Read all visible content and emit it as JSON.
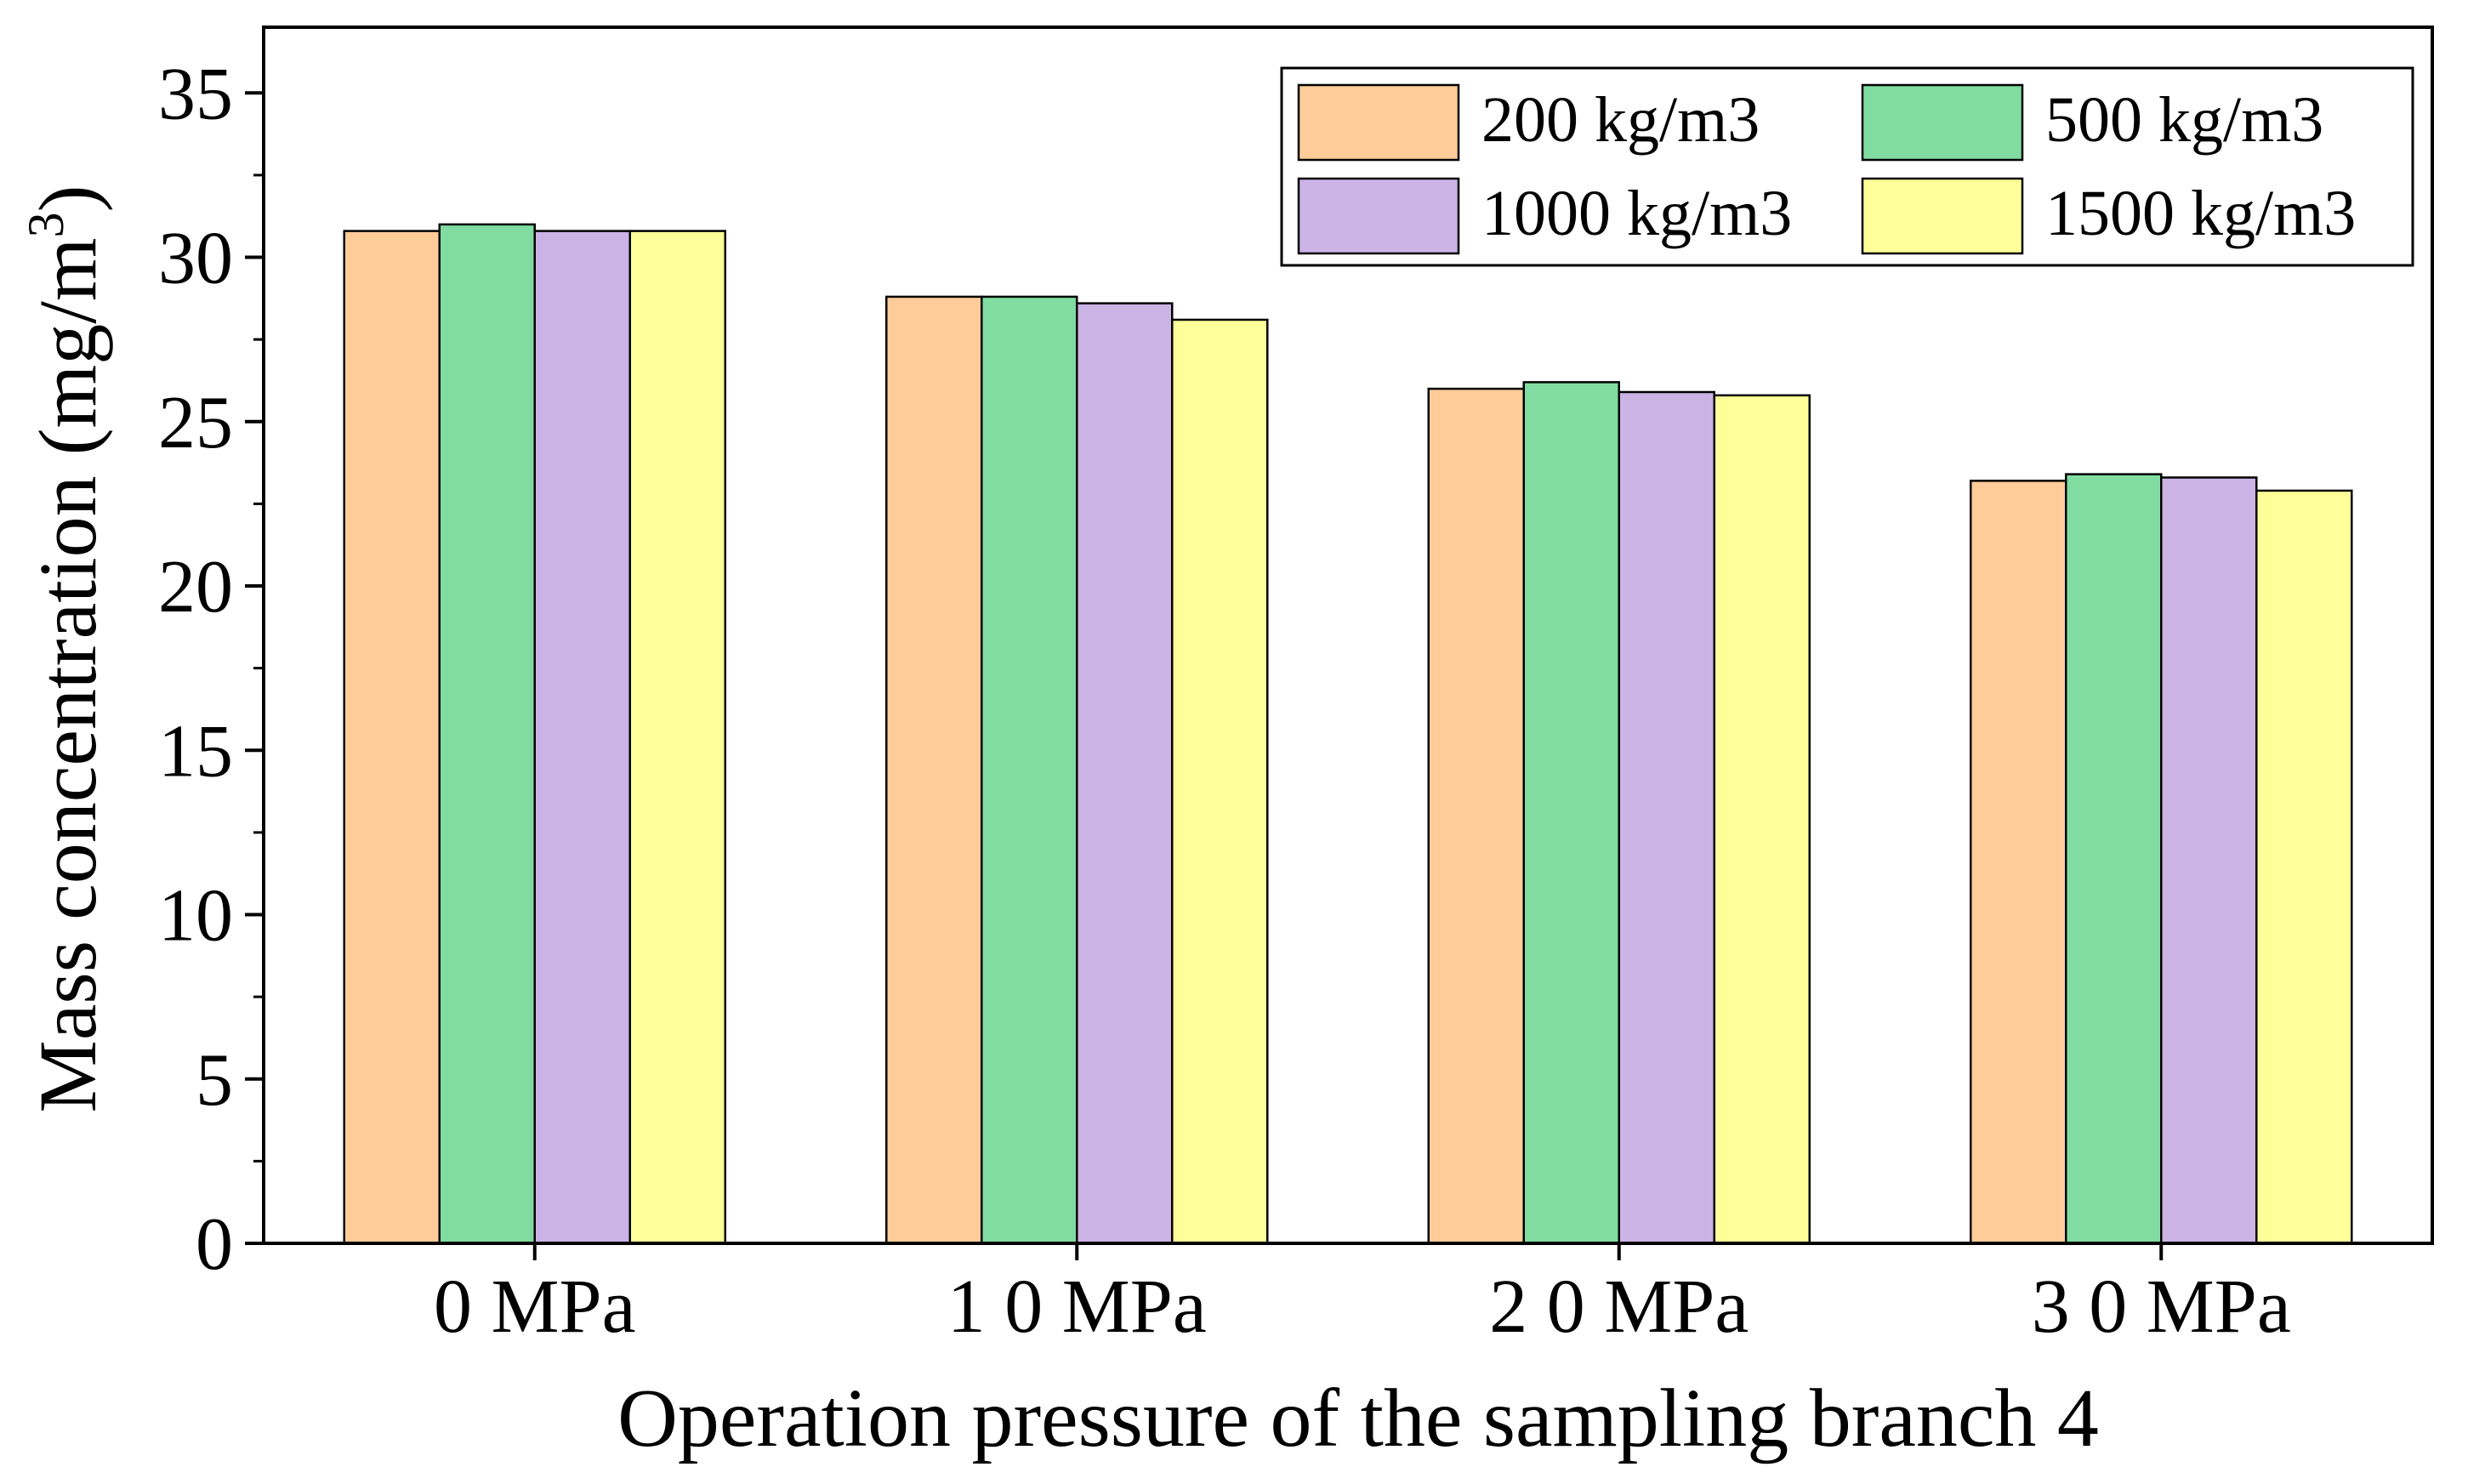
{
  "chart_data": {
    "type": "bar",
    "title": "",
    "xlabel": "Operation pressure of the sampling branch 4",
    "ylabel": "Mass concentration (mg/m",
    "ylabel_sup": "3",
    "ylabel_close": ")",
    "ylim": [
      0,
      37
    ],
    "yticks": [
      0,
      5,
      10,
      15,
      20,
      25,
      30,
      35
    ],
    "ytick_labels": [
      "0",
      "5",
      "10",
      "15",
      "20",
      "25",
      "30",
      "35"
    ],
    "categories": [
      "0 MPa",
      "1 0 MPa",
      "2 0 MPa",
      "3 0 MPa"
    ],
    "grid": false,
    "legend_position": "top-right",
    "series": [
      {
        "name": "200 kg/m3",
        "color": "#FFCC99",
        "values": [
          30.8,
          28.8,
          26.0,
          23.2
        ]
      },
      {
        "name": "500 kg/m3",
        "color": "#80DCA0",
        "values": [
          31.0,
          28.8,
          26.2,
          23.4
        ]
      },
      {
        "name": "1000 kg/m3",
        "color": "#CCB3E6",
        "values": [
          30.8,
          28.6,
          25.9,
          23.3
        ]
      },
      {
        "name": "1500 kg/m3",
        "color": "#FFFF99",
        "values": [
          30.8,
          28.1,
          25.8,
          22.9
        ]
      }
    ]
  }
}
